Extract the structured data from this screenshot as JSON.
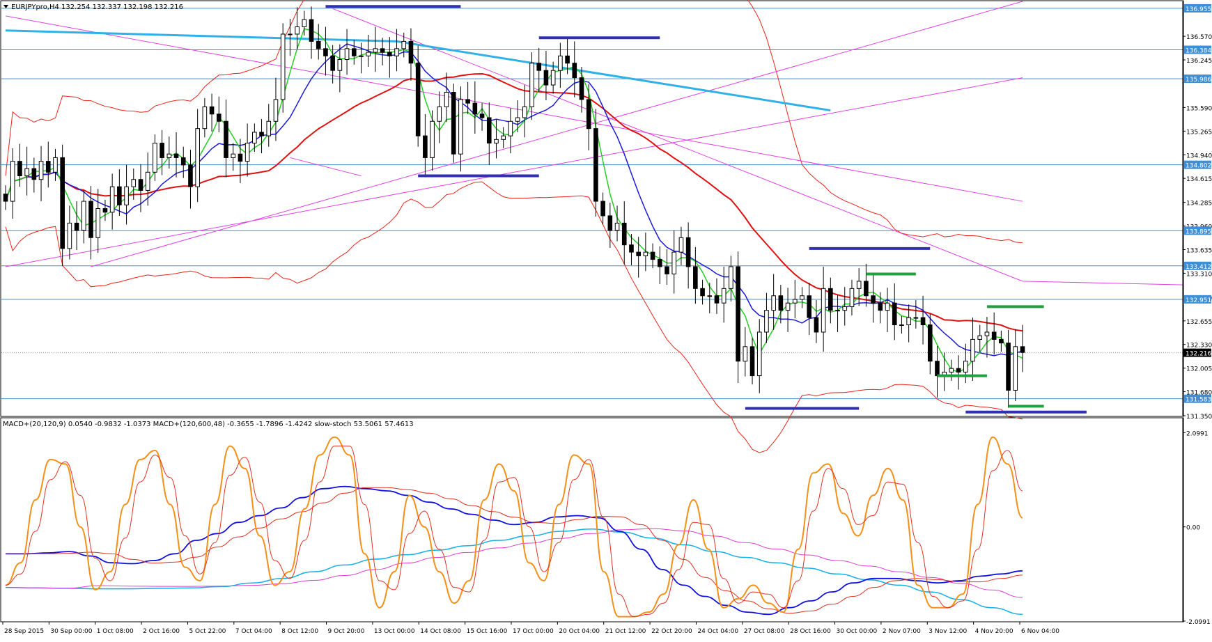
{
  "chart_title": "EURJPYpro,H4  132.254 132.337 132.198 132.216",
  "indicator_title": "MACD+(20,120,9) 0.0540 -0.9832 -1.0373  MACD+(120,600,48) -0.3655 -1.7896 -1.4242  slow-stoch 53.5061 57.4613",
  "colors": {
    "background": "#ffffff",
    "grid_h": "#3f8fd6",
    "bb_line": "#e8231a",
    "ma_slow": "#e01010",
    "ma_blue": "#1a1ad8",
    "ma_green": "#22d022",
    "trend_magenta": "#e040e0",
    "trend_cyan": "#30b0e8",
    "zone_blue": "#3030b0",
    "zone_green": "#20a040",
    "stoch_orange": "#f39018",
    "stoch_red": "#e03020",
    "macd1_blue": "#1010e0",
    "macd2_cyan": "#10b0e8",
    "macd2_pink": "#e03ad0",
    "price_box": "#3f8fd6",
    "current_box": "#000000"
  },
  "chart_data": [
    {
      "type": "candlestick",
      "title": "EURJPYpro,H4  132.254 132.337 132.198 132.216",
      "ylim": [
        131.35,
        137.05
      ],
      "price_scale_ticks": [
        "136.570",
        "136.245",
        "135.590",
        "135.265",
        "134.940",
        "134.615",
        "134.285",
        "133.960",
        "133.635",
        "133.310",
        "132.980",
        "132.655",
        "132.330",
        "132.005",
        "131.680",
        "131.350"
      ],
      "horizontal_levels": [
        "136.955",
        "136.384",
        "135.986",
        "134.802",
        "133.895",
        "133.412",
        "132.951",
        "131.583"
      ],
      "current_price": "132.216",
      "x_tick_labels": [
        "28 Sep 2015",
        "30 Sep 00:00",
        "1 Oct 08:00",
        "2 Oct 16:00",
        "5 Oct 22:00",
        "7 Oct 04:00",
        "8 Oct 12:00",
        "9 Oct 20:00",
        "13 Oct 00:00",
        "14 Oct 08:00",
        "15 Oct 16:00",
        "17 Oct 00:00",
        "20 Oct 04:00",
        "21 Oct 12:00",
        "22 Oct 20:00",
        "24 Oct 04:00",
        "27 Oct 08:00",
        "28 Oct 16:00",
        "30 Oct 00:00",
        "2 Nov 07:00",
        "3 Nov 12:00",
        "4 Nov 20:00",
        "6 Nov 04:00"
      ],
      "closes": [
        134.3,
        134.85,
        134.65,
        134.75,
        134.6,
        134.85,
        134.7,
        134.9,
        133.65,
        134.0,
        133.9,
        134.3,
        133.8,
        134.2,
        134.15,
        134.5,
        134.25,
        134.5,
        134.6,
        134.45,
        134.7,
        135.1,
        134.9,
        134.95,
        134.9,
        134.8,
        134.5,
        135.3,
        135.6,
        135.5,
        135.4,
        134.9,
        134.95,
        134.85,
        135.1,
        135.25,
        135.2,
        135.4,
        135.7,
        136.6,
        136.6,
        136.7,
        136.8,
        136.5,
        136.4,
        136.3,
        136.1,
        136.25,
        136.4,
        136.3,
        136.3,
        136.35,
        136.4,
        136.35,
        136.3,
        136.4,
        136.5,
        136.2,
        135.2,
        134.9,
        135.4,
        135.6,
        135.8,
        134.95,
        135.7,
        135.65,
        135.5,
        135.45,
        135.1,
        135.15,
        135.2,
        135.4,
        135.45,
        135.6,
        136.2,
        136.1,
        135.9,
        136.1,
        136.3,
        136.2,
        136.0,
        135.7,
        135.3,
        134.3,
        134.1,
        133.9,
        134.0,
        133.7,
        133.6,
        133.55,
        133.6,
        133.5,
        133.4,
        133.3,
        133.6,
        133.8,
        133.4,
        133.1,
        133.0,
        133.0,
        132.9,
        133.1,
        133.4,
        132.1,
        132.3,
        131.9,
        132.5,
        132.8,
        133.0,
        132.8,
        132.9,
        132.95,
        133.0,
        132.7,
        132.5,
        133.1,
        132.8,
        132.8,
        132.85,
        133.1,
        133.2,
        133.0,
        132.9,
        132.8,
        132.9,
        132.6,
        132.6,
        132.7,
        132.7,
        132.6,
        132.1,
        131.9,
        131.95,
        132.0,
        131.95,
        132.1,
        132.4,
        132.45,
        132.5,
        132.4,
        132.35,
        131.7,
        132.3,
        132.22
      ]
    },
    {
      "type": "line",
      "title": "MACD+(20,120,9) 0.0540 -0.9832 -1.0373  MACD+(120,600,48) -0.3655 -1.7896 -1.4242  slow-stoch 53.5061 57.4613",
      "ylim": [
        -2.1,
        2.15
      ],
      "y_tick_labels": [
        "2.0991",
        "0.00",
        "-2.0991"
      ],
      "series": [
        {
          "values_note": "",
          "values": [
            -0.8,
            -0.85,
            -0.78,
            -0.7,
            -0.74,
            -0.72,
            -0.7,
            -0.6,
            -0.5,
            -0.2,
            0.3,
            0.6,
            1.0,
            1.3,
            1.4,
            1.45,
            1.42,
            1.4,
            1.45,
            1.4,
            1.38,
            1.35,
            1.3,
            1.2,
            1.1,
            0.9,
            0.75,
            0.7,
            0.65,
            0.55,
            0.4,
            0.25,
            0.1,
            0.05,
            0.35,
            0.45,
            0.25,
            0.05,
            -0.2,
            -0.35,
            -0.55,
            -0.75,
            -0.85,
            -0.9,
            -1.0,
            -1.1,
            -1.3,
            -1.5,
            -1.65,
            -1.8,
            -1.92,
            -2.0,
            -1.95,
            -1.85,
            -1.7,
            -1.55,
            -1.4,
            -1.3,
            -1.2,
            -1.05
          ]
        }
      ]
    }
  ],
  "stoch_series": [
    -1.3,
    -0.8,
    0.6,
    1.5,
    1.4,
    0.0,
    -1.4,
    -1.0,
    0.5,
    1.5,
    1.7,
    0.5,
    -0.9,
    -1.2,
    0.5,
    1.8,
    1.3,
    -0.2,
    -1.3,
    -1.0,
    0.4,
    1.6,
    2.0,
    1.6,
    -0.6,
    -1.8,
    -1.0,
    0.7,
    0.0,
    -1.0,
    -1.7,
    -1.2,
    0.6,
    1.4,
    0.8,
    -0.8,
    -1.2,
    0.5,
    1.6,
    1.4,
    -1.0,
    -2.0,
    -2.0,
    -1.9,
    -1.5,
    -0.4,
    0.6,
    -0.5,
    -1.8,
    -1.6,
    -1.3,
    -1.7,
    -1.9,
    -0.5,
    1.2,
    1.4,
    0.3,
    -0.2,
    0.7,
    1.3,
    0.6,
    -1.3,
    -1.8,
    -1.8,
    -1.5,
    0.5,
    2.0,
    1.4,
    0.2
  ],
  "macd1_series": [
    -0.6,
    -0.6,
    -0.58,
    -0.55,
    -0.65,
    -0.8,
    -0.82,
    -0.75,
    -0.6,
    -0.3,
    -0.15,
    0.1,
    0.25,
    0.42,
    0.65,
    0.85,
    0.9,
    0.85,
    0.8,
    0.7,
    0.55,
    0.4,
    0.28,
    0.15,
    0.05,
    0.1,
    0.22,
    0.25,
    0.2,
    -0.1,
    -0.5,
    -0.95,
    -1.3,
    -1.55,
    -1.75,
    -1.9,
    -1.95,
    -1.8,
    -1.65,
    -1.45,
    -1.25,
    -1.15,
    -1.15,
    -1.2,
    -1.25,
    -1.2,
    -1.1,
    -1.05,
    -0.98
  ],
  "macd2_series": [
    -1.35,
    -1.36,
    -1.37,
    -1.38,
    -1.38,
    -1.37,
    -1.36,
    -1.33,
    -1.25,
    -1.15,
    -1.0,
    -0.85,
    -0.72,
    -0.62,
    -0.52,
    -0.42,
    -0.3,
    -0.2,
    -0.1,
    -0.05,
    -0.12,
    -0.25,
    -0.4,
    -0.55,
    -0.68,
    -0.8,
    -0.92,
    -1.05,
    -1.18,
    -1.3,
    -1.45,
    -1.62,
    -1.8,
    -1.95
  ]
}
